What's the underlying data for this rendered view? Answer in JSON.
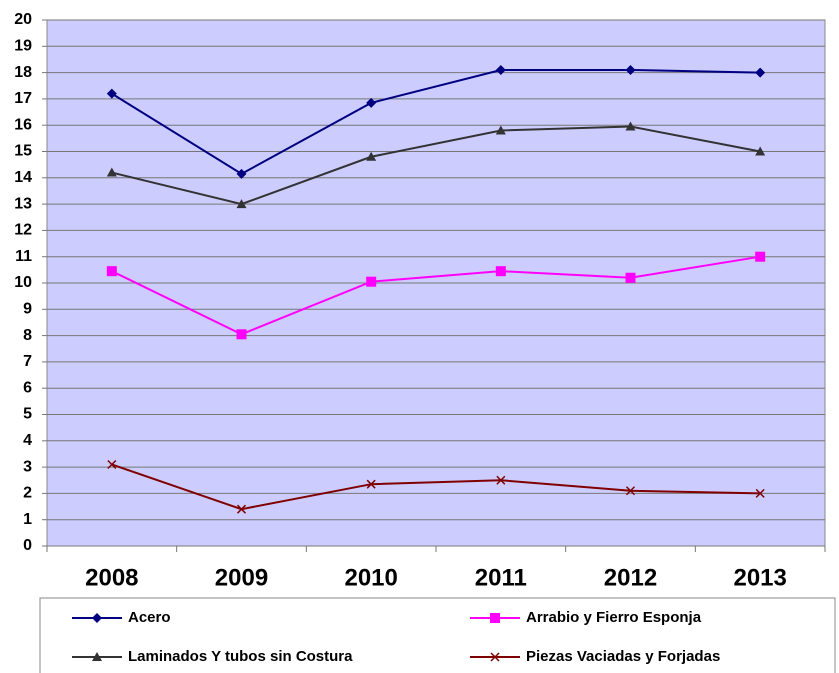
{
  "chart_data": {
    "type": "line",
    "categories": [
      "2008",
      "2009",
      "2010",
      "2011",
      "2012",
      "2013"
    ],
    "series": [
      {
        "name": "Acero",
        "color": "#000080",
        "marker": "diamond",
        "values": [
          17.2,
          14.15,
          16.85,
          18.1,
          18.1,
          18.0
        ]
      },
      {
        "name": "Arrabio y Fierro Esponja",
        "color": "#ff00ff",
        "marker": "square",
        "values": [
          10.45,
          8.05,
          10.05,
          10.45,
          10.2,
          11.0
        ]
      },
      {
        "name": "Laminados Y tubos sin Costura",
        "color": "#333333",
        "marker": "triangle",
        "values": [
          14.2,
          13.0,
          14.8,
          15.8,
          15.95,
          15.0
        ]
      },
      {
        "name": "Piezas Vaciadas y Forjadas",
        "color": "#800000",
        "marker": "x",
        "values": [
          3.1,
          1.4,
          2.35,
          2.5,
          2.1,
          2.0
        ]
      }
    ],
    "ylim": [
      0,
      20
    ],
    "yticks": [
      0,
      1,
      2,
      3,
      4,
      5,
      6,
      7,
      8,
      9,
      10,
      11,
      12,
      13,
      14,
      15,
      16,
      17,
      18,
      19,
      20
    ],
    "grid": true,
    "plot_background": "#ccccff",
    "legend": "bottom"
  }
}
